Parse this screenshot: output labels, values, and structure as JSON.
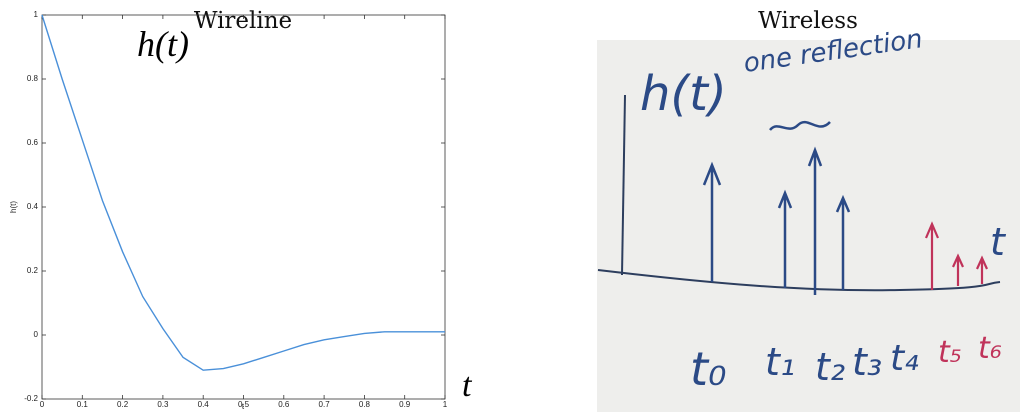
{
  "chart_data": {
    "type": "line",
    "title": "Wireline",
    "xlabel": "t",
    "ylabel": "h(t)",
    "annotations": [
      "h(t)",
      "t"
    ],
    "x": [
      0,
      0.05,
      0.1,
      0.15,
      0.2,
      0.25,
      0.3,
      0.35,
      0.4,
      0.45,
      0.5,
      0.55,
      0.6,
      0.65,
      0.7,
      0.75,
      0.8,
      0.85,
      0.9,
      0.95,
      1
    ],
    "series": [
      {
        "color": "#4a90d9",
        "values": [
          1,
          0.8,
          0.61,
          0.42,
          0.26,
          0.12,
          0.02,
          -0.07,
          -0.11,
          -0.105,
          -0.09,
          -0.07,
          -0.05,
          -0.03,
          -0.015,
          -0.005,
          0.005,
          0.01,
          0.01,
          0.01,
          0.01
        ]
      }
    ],
    "xlim": [
      0,
      1
    ],
    "ylim": [
      -0.2,
      1
    ],
    "xticks": [
      0,
      0.1,
      0.2,
      0.3,
      0.4,
      0.5,
      0.6,
      0.7,
      0.8,
      0.9,
      1
    ],
    "yticks": [
      -0.2,
      0,
      0.2,
      0.4,
      0.6,
      0.8,
      1
    ]
  },
  "wireless": {
    "title": "Wireless",
    "labels": [
      "h(t)",
      "one reflection",
      "t",
      "t₀",
      "t₁",
      "t₂",
      "t₃",
      "t₄",
      "t₅",
      "t₆"
    ]
  }
}
